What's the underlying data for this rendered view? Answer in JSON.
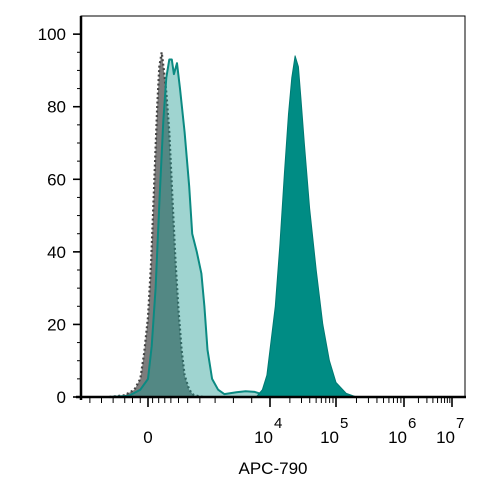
{
  "chart_data": {
    "type": "area",
    "title": "",
    "xlabel": "APC-790",
    "ylabel": "",
    "ylim": [
      0,
      105
    ],
    "x_scale": "biexponential",
    "y_ticks": [
      "0",
      "20",
      "40",
      "60",
      "80",
      "100"
    ],
    "y_tick_values": [
      0,
      20,
      40,
      60,
      80,
      100
    ],
    "x_ticks": [
      {
        "base": "0",
        "exp": "",
        "decade": 0
      },
      {
        "base": "10",
        "exp": "4",
        "decade": 4
      },
      {
        "base": "10",
        "exp": "5",
        "decade": 5
      },
      {
        "base": "10",
        "exp": "6",
        "decade": 6
      },
      {
        "base": "10",
        "exp": "7",
        "decade": 7
      }
    ],
    "legend": "none",
    "grid": false,
    "series": [
      {
        "style": "gray-filled-dotted-outline",
        "color": "#6e6e6e",
        "points": [
          [
            -1.0,
            0
          ],
          [
            -0.6,
            0.5
          ],
          [
            -0.35,
            2
          ],
          [
            -0.2,
            5
          ],
          [
            -0.1,
            12
          ],
          [
            0,
            22
          ],
          [
            0.1,
            37
          ],
          [
            0.2,
            58
          ],
          [
            0.3,
            80
          ],
          [
            0.37,
            91
          ],
          [
            0.45,
            95
          ],
          [
            0.52,
            90
          ],
          [
            0.6,
            84
          ],
          [
            0.7,
            73
          ],
          [
            0.8,
            55
          ],
          [
            0.9,
            38
          ],
          [
            1.0,
            24
          ],
          [
            1.1,
            13
          ],
          [
            1.2,
            6
          ],
          [
            1.35,
            2
          ],
          [
            1.5,
            0.5
          ],
          [
            1.8,
            0
          ]
        ]
      },
      {
        "style": "teal-light-fill-solid-outline",
        "color": "#1a9990",
        "points": [
          [
            -1.0,
            0
          ],
          [
            -0.5,
            0.3
          ],
          [
            -0.2,
            2
          ],
          [
            0,
            5
          ],
          [
            0.12,
            14
          ],
          [
            0.25,
            30
          ],
          [
            0.38,
            55
          ],
          [
            0.5,
            76
          ],
          [
            0.6,
            88
          ],
          [
            0.7,
            93
          ],
          [
            0.78,
            93
          ],
          [
            0.85,
            89
          ],
          [
            0.95,
            92
          ],
          [
            1.05,
            85
          ],
          [
            1.2,
            73
          ],
          [
            1.35,
            58
          ],
          [
            1.45,
            45
          ],
          [
            1.6,
            40
          ],
          [
            1.75,
            34
          ],
          [
            1.85,
            25
          ],
          [
            1.95,
            13
          ],
          [
            2.1,
            5
          ],
          [
            2.3,
            2
          ],
          [
            2.5,
            0.8
          ],
          [
            2.9,
            1.3
          ],
          [
            3.2,
            1.6
          ],
          [
            3.5,
            1.4
          ],
          [
            3.8,
            0.6
          ],
          [
            4.2,
            0
          ]
        ]
      },
      {
        "style": "teal-dark-filled",
        "color": "#008c84",
        "points": [
          [
            3.55,
            0
          ],
          [
            3.75,
            2
          ],
          [
            3.9,
            6
          ],
          [
            4.0,
            13
          ],
          [
            4.08,
            25
          ],
          [
            4.15,
            42
          ],
          [
            4.22,
            62
          ],
          [
            4.28,
            78
          ],
          [
            4.33,
            88
          ],
          [
            4.38,
            94
          ],
          [
            4.43,
            91
          ],
          [
            4.47,
            82
          ],
          [
            4.52,
            70
          ],
          [
            4.6,
            52
          ],
          [
            4.7,
            35
          ],
          [
            4.8,
            20
          ],
          [
            4.9,
            10
          ],
          [
            5.0,
            4
          ],
          [
            5.15,
            1
          ],
          [
            5.3,
            0
          ]
        ]
      }
    ]
  }
}
